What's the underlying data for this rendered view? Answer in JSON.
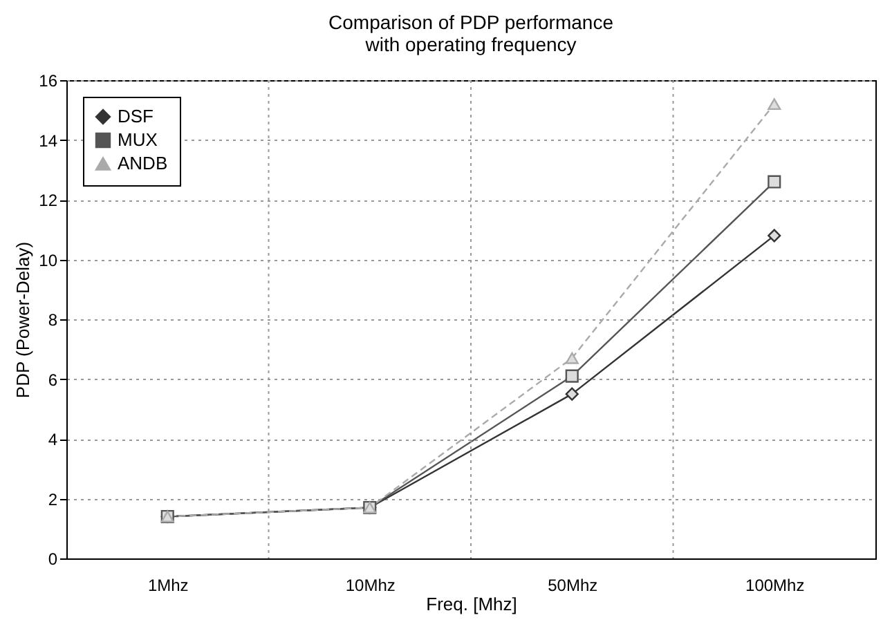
{
  "chart_data": {
    "type": "line",
    "title": "Comparison of PDP performance with operating frequency",
    "xlabel": "Freq. [Mhz]",
    "ylabel": "PDP (Power-Delay)",
    "categories": [
      "1Mhz",
      "10Mhz",
      "50Mhz",
      "100Mhz"
    ],
    "series": [
      {
        "name": "DSF",
        "color": "#333333",
        "values": [
          1.4,
          1.7,
          5.5,
          10.8
        ],
        "marker": "diamond",
        "line_style": "solid"
      },
      {
        "name": "MUX",
        "color": "#555555",
        "values": [
          1.4,
          1.7,
          6.1,
          12.6
        ],
        "marker": "square",
        "line_style": "solid"
      },
      {
        "name": "ANDB",
        "color": "#aaaaaa",
        "values": [
          1.4,
          1.7,
          6.7,
          15.2
        ],
        "marker": "triangle",
        "line_style": "dashed"
      }
    ],
    "ylim": [
      0,
      16
    ],
    "yticks": [
      0,
      2,
      4,
      6,
      8,
      10,
      12,
      14,
      16
    ],
    "grid": true,
    "legend": "top left"
  }
}
